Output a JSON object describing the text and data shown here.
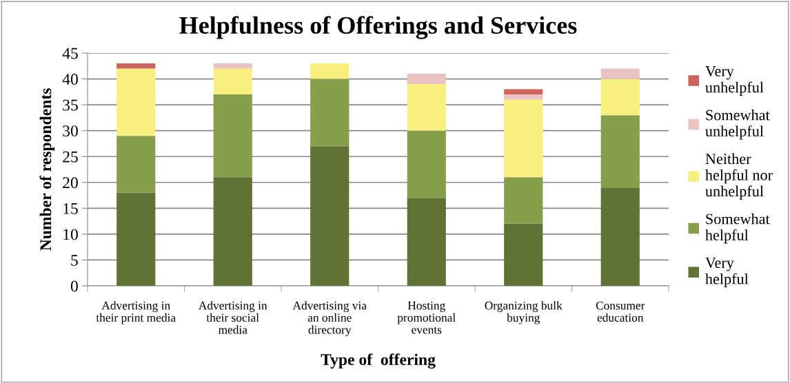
{
  "chart_data": {
    "type": "bar",
    "stacked": true,
    "title": "Helpfulness of Offerings and Services",
    "xlabel": "Type of  offering",
    "ylabel": "Number of respondents",
    "categories": [
      "Advertising in\ntheir print media",
      "Advertising in\ntheir social\nmedia",
      "Advertising via\nan online\ndirectory",
      "Hosting\npromotional\nevents",
      "Organizing bulk\nbuying",
      "Consumer\neducation"
    ],
    "series": [
      {
        "name": "Very\nhelpful",
        "color": "#617334",
        "values": [
          18,
          21,
          27,
          17,
          12,
          19
        ]
      },
      {
        "name": "Somewhat\nhelpful",
        "color": "#879f4c",
        "values": [
          11,
          16,
          13,
          13,
          9,
          14
        ]
      },
      {
        "name": "Neither\nhelpful nor\nunhelpful",
        "color": "#f7ef80",
        "values": [
          13,
          5,
          3,
          9,
          15,
          7
        ]
      },
      {
        "name": "Somewhat\nunhelpful",
        "color": "#eac3c3",
        "values": [
          0,
          1,
          0,
          2,
          1,
          2
        ]
      },
      {
        "name": "Very\nunhelpful",
        "color": "#cc635c",
        "values": [
          1,
          0,
          0,
          0,
          1,
          0
        ]
      }
    ],
    "ylim": [
      0,
      45
    ],
    "yticks": [
      0,
      5,
      10,
      15,
      20,
      25,
      30,
      35,
      40,
      45
    ],
    "grid": "y",
    "legend": "right"
  }
}
